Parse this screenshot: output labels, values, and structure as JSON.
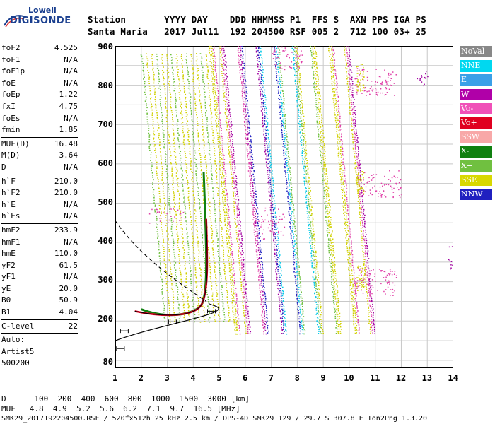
{
  "logo": {
    "line1": "Lowell",
    "line2": "DIGISONDE"
  },
  "header": {
    "line1": "Station       YYYY DAY    DDD HHMMSS P1  FFS S  AXN PPS IGA PS",
    "line2": "Santa Maria   2017 Jul11  192 204500 RSF 005 2  712 100 03+ 25"
  },
  "params": [
    {
      "label": "foF2",
      "value": "4.525"
    },
    {
      "label": "foF1",
      "value": "N/A"
    },
    {
      "label": "foF1p",
      "value": "N/A"
    },
    {
      "label": "foE",
      "value": "N/A"
    },
    {
      "label": "foEp",
      "value": "1.22"
    },
    {
      "label": "fxI",
      "value": "4.75"
    },
    {
      "label": "foEs",
      "value": "N/A"
    },
    {
      "label": "fmin",
      "value": "1.85"
    },
    {
      "label": "MUF(D)",
      "value": "16.48",
      "sep": true
    },
    {
      "label": "M(D)",
      "value": "3.64"
    },
    {
      "label": "D",
      "value": "N/A"
    },
    {
      "label": "h`F",
      "value": "210.0",
      "sep": true
    },
    {
      "label": "h`F2",
      "value": "210.0"
    },
    {
      "label": "h`E",
      "value": "N/A"
    },
    {
      "label": "h`Es",
      "value": "N/A"
    },
    {
      "label": "hmF2",
      "value": "233.9",
      "sep": true
    },
    {
      "label": "hmF1",
      "value": "N/A"
    },
    {
      "label": "hmE",
      "value": "110.0"
    },
    {
      "label": "yF2",
      "value": "61.5"
    },
    {
      "label": "yF1",
      "value": "N/A"
    },
    {
      "label": "yE",
      "value": "20.0"
    },
    {
      "label": "B0",
      "value": "50.9"
    },
    {
      "label": "B1",
      "value": "4.04"
    },
    {
      "label": "C-level",
      "value": "22",
      "sep": true
    }
  ],
  "auto": {
    "line1": "Auto:",
    "line2": "Artist5",
    "line3": "500200"
  },
  "y_ticks": [
    "900",
    "800",
    "700",
    "600",
    "500",
    "400",
    "300",
    "200",
    "80"
  ],
  "x_ticks": [
    "1",
    "2",
    "3",
    "4",
    "5",
    "6",
    "7",
    "8",
    "9",
    "10",
    "11",
    "12",
    "13",
    "14"
  ],
  "legend": [
    {
      "label": "NoVal",
      "color": "#888888"
    },
    {
      "label": "NNE",
      "color": "#00d8f0"
    },
    {
      "label": "E",
      "color": "#3aa0e8"
    },
    {
      "label": "W",
      "color": "#b000a8"
    },
    {
      "label": "Vo-",
      "color": "#f050b8"
    },
    {
      "label": "Vo+",
      "color": "#e00020"
    },
    {
      "label": "SSW",
      "color": "#f8a8a8"
    },
    {
      "label": "X-",
      "color": "#108010"
    },
    {
      "label": "X+",
      "color": "#70c040"
    },
    {
      "label": "SSE",
      "color": "#d8d800"
    },
    {
      "label": "NNW",
      "color": "#2020c0"
    }
  ],
  "footer": {
    "d_row": "D      100  200  400  600  800  1000  1500  3000 [km]",
    "muf_row": "MUF   4.8  4.9  5.2  5.6  6.2  7.1  9.7  16.5 [MHz]",
    "file_row": "SMK29_2017192204500.RSF / 520fx512h 25 kHz 2.5 km / DPS-4D SMK29 129 / 29.7 S 307.8 E Ion2Png 1.3.20"
  }
}
